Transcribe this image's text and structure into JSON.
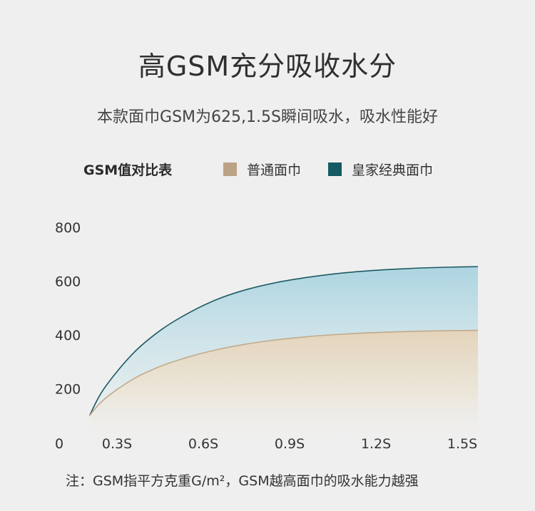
{
  "title": "高GSM充分吸收水分",
  "subtitle": "本款面巾GSM为625,1.5S瞬间吸水，吸水性能好",
  "footnote": "注：GSM指平方克重G/m²，GSM越高面巾的吸水能力越强",
  "colors": {
    "normal": "#bba385",
    "royal": "#145a63",
    "normal_line": "#c0aa8c",
    "royal_line": "#1d5a62"
  },
  "chart_data": {
    "type": "area",
    "legend_title": "GSM值对比表",
    "legend_placement": "top",
    "x_ticks": [
      "0",
      "0.3S",
      "0.6S",
      "0.9S",
      "1.2S",
      "1.5S"
    ],
    "x_tick_values": [
      0,
      0.3,
      0.6,
      0.9,
      1.2,
      1.5
    ],
    "y_ticks": [
      "800",
      "600",
      "400",
      "200"
    ],
    "y_tick_values": [
      800,
      600,
      400,
      200
    ],
    "ylim": [
      0,
      800
    ],
    "xlim": [
      0,
      1.5
    ],
    "grid": false,
    "series": [
      {
        "name": "皇家经典面巾",
        "x": [
          0.15,
          0.2,
          0.3,
          0.4,
          0.5,
          0.6,
          0.7,
          0.8,
          0.9,
          1.0,
          1.1,
          1.2,
          1.3,
          1.4,
          1.5
        ],
        "values": [
          100,
          200,
          330,
          420,
          485,
          535,
          570,
          595,
          613,
          627,
          637,
          644,
          649,
          652,
          654
        ]
      },
      {
        "name": "普通面巾",
        "x": [
          0.15,
          0.2,
          0.3,
          0.4,
          0.5,
          0.6,
          0.7,
          0.8,
          0.9,
          1.0,
          1.1,
          1.2,
          1.3,
          1.4,
          1.5
        ],
        "values": [
          100,
          160,
          235,
          285,
          320,
          347,
          367,
          382,
          393,
          401,
          407,
          411,
          414,
          416,
          417
        ]
      }
    ]
  }
}
